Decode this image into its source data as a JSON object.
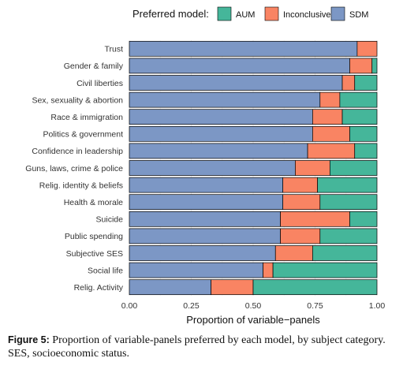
{
  "chart_data": {
    "type": "bar",
    "orientation": "horizontal",
    "stacked": true,
    "legend": {
      "title": "Preferred model:",
      "placement": "top",
      "entries": [
        {
          "name": "AUM",
          "color": "#45b69a"
        },
        {
          "name": "Inconclusive",
          "color": "#f98463"
        },
        {
          "name": "SDM",
          "color": "#7c97c5"
        }
      ]
    },
    "categories": [
      "Trust",
      "Gender & family",
      "Civil liberties",
      "Sex, sexuality & abortion",
      "Race & immigration",
      "Politics & government",
      "Confidence in leadership",
      "Guns, laws, crime & police",
      "Relig. identity & beliefs",
      "Health & morale",
      "Suicide",
      "Public spending",
      "Subjective SES",
      "Social life",
      "Relig. Activity"
    ],
    "series": [
      {
        "name": "SDM",
        "color": "#7c97c5",
        "values": [
          0.92,
          0.89,
          0.86,
          0.77,
          0.74,
          0.74,
          0.72,
          0.67,
          0.62,
          0.62,
          0.61,
          0.61,
          0.59,
          0.54,
          0.33
        ]
      },
      {
        "name": "Inconclusive",
        "color": "#f98463",
        "values": [
          0.08,
          0.09,
          0.05,
          0.08,
          0.12,
          0.15,
          0.19,
          0.14,
          0.14,
          0.15,
          0.28,
          0.16,
          0.15,
          0.04,
          0.17
        ]
      },
      {
        "name": "AUM",
        "color": "#45b69a",
        "values": [
          0.0,
          0.02,
          0.09,
          0.15,
          0.14,
          0.11,
          0.09,
          0.19,
          0.24,
          0.23,
          0.11,
          0.23,
          0.26,
          0.42,
          0.5
        ]
      }
    ],
    "xlim": [
      0,
      1
    ],
    "xticks": [
      "0.00",
      "0.25",
      "0.50",
      "0.75",
      "1.00"
    ],
    "xlabel": "Proportion of variable−panels",
    "grid": true
  },
  "caption": {
    "label": "Figure 5:",
    "text": " Proportion of variable-panels preferred by each model, by subject category. SES, socioeconomic status."
  }
}
